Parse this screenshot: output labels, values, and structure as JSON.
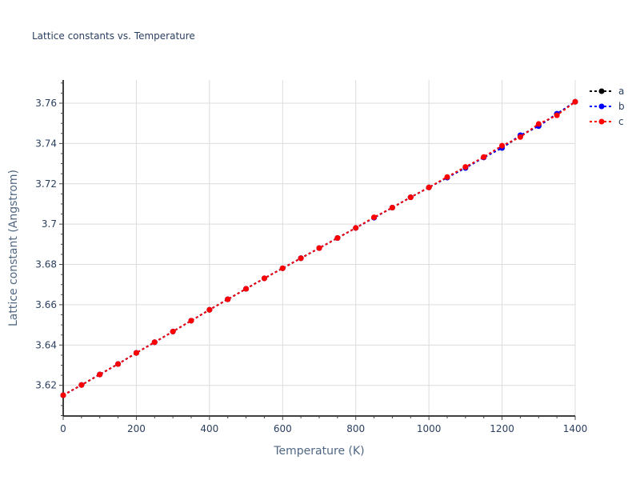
{
  "chart_data": {
    "type": "line",
    "title": "Lattice constants vs. Temperature",
    "xlabel": "Temperature (K)",
    "ylabel": "Lattice constant (Angstrom)",
    "xlim": [
      0,
      1400
    ],
    "ylim": [
      3.6048,
      3.7715
    ],
    "x_ticks": [
      0,
      200,
      400,
      600,
      800,
      1000,
      1200,
      1400
    ],
    "y_ticks": [
      3.62,
      3.64,
      3.66,
      3.68,
      3.7,
      3.72,
      3.74,
      3.76
    ],
    "y_tick_labels": [
      "3.62",
      "3.64",
      "3.66",
      "3.68",
      "3.7",
      "3.72",
      "3.74",
      "3.76"
    ],
    "grid": true,
    "legend_position": "right-top",
    "x": [
      0,
      50,
      100,
      150,
      200,
      250,
      300,
      350,
      400,
      450,
      500,
      550,
      600,
      650,
      700,
      750,
      800,
      850,
      900,
      950,
      1000,
      1050,
      1100,
      1150,
      1200,
      1250,
      1300,
      1350,
      1400
    ],
    "series": [
      {
        "name": "a",
        "color": "#000000",
        "values": [
          3.6151,
          3.6202,
          3.6254,
          3.6306,
          3.6361,
          3.6414,
          3.6467,
          3.6521,
          3.6575,
          3.6627,
          3.6679,
          3.6731,
          3.6781,
          3.6831,
          3.6881,
          3.6931,
          3.6981,
          3.7032,
          3.7082,
          3.7133,
          3.7182,
          3.7231,
          3.7279,
          3.7331,
          3.7378,
          3.7438,
          3.7487,
          3.7546,
          3.7607
        ]
      },
      {
        "name": "b",
        "color": "#0000ff",
        "values": [
          3.6151,
          3.6202,
          3.6254,
          3.6306,
          3.6361,
          3.6414,
          3.6467,
          3.6521,
          3.6575,
          3.6627,
          3.6679,
          3.6731,
          3.6781,
          3.6831,
          3.6881,
          3.6931,
          3.6981,
          3.7032,
          3.7082,
          3.7133,
          3.7182,
          3.7231,
          3.7279,
          3.7331,
          3.7378,
          3.7441,
          3.7486,
          3.7548,
          3.7607
        ]
      },
      {
        "name": "c",
        "color": "#ff0000",
        "values": [
          3.6151,
          3.6202,
          3.6254,
          3.6306,
          3.6361,
          3.6414,
          3.6467,
          3.6521,
          3.6575,
          3.6627,
          3.6679,
          3.6731,
          3.6781,
          3.6831,
          3.6881,
          3.6931,
          3.6981,
          3.7034,
          3.7082,
          3.7133,
          3.7182,
          3.7234,
          3.7284,
          3.7333,
          3.7389,
          3.7432,
          3.7497,
          3.754,
          3.7607
        ]
      }
    ]
  },
  "legend": {
    "items": [
      {
        "label": "a",
        "color": "#000000"
      },
      {
        "label": "b",
        "color": "#0000ff"
      },
      {
        "label": "c",
        "color": "#ff0000"
      }
    ]
  }
}
